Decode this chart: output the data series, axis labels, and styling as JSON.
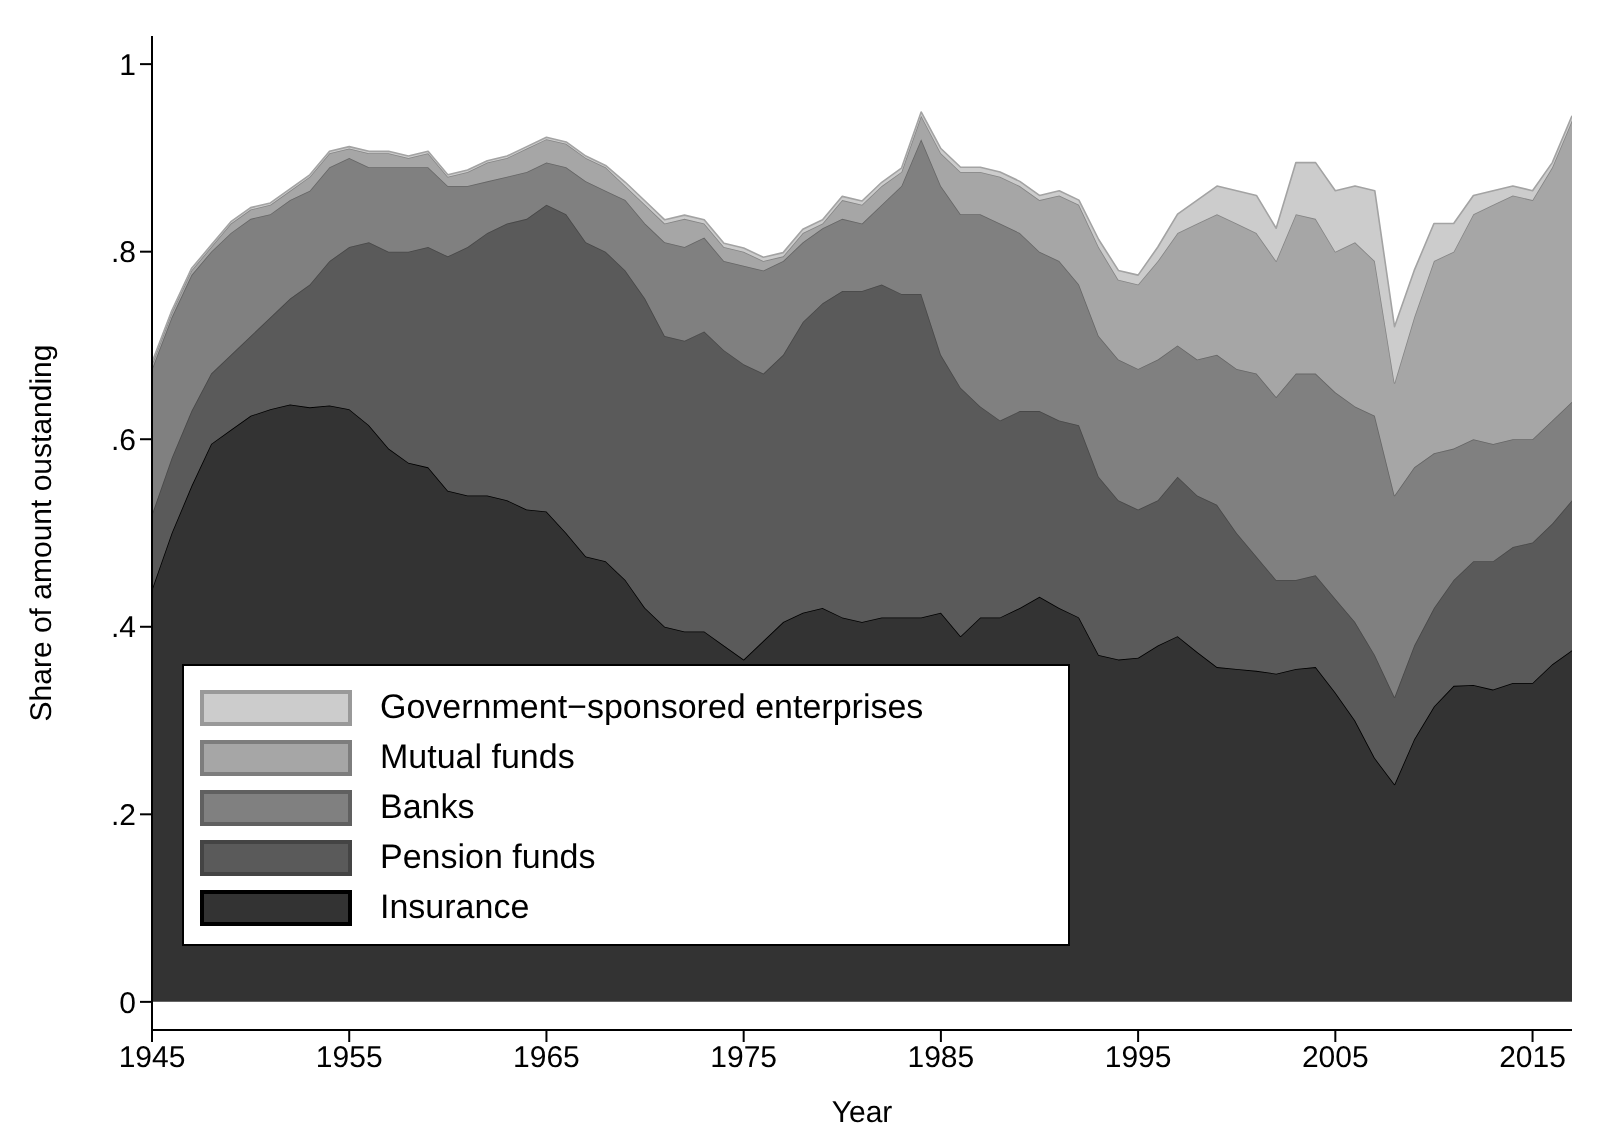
{
  "chart_data": {
    "type": "area",
    "stacked": true,
    "xlabel": "Year",
    "ylabel": "Share of amount oustanding",
    "x": [
      1945,
      1946,
      1947,
      1948,
      1949,
      1950,
      1951,
      1952,
      1953,
      1954,
      1955,
      1956,
      1957,
      1958,
      1959,
      1960,
      1961,
      1962,
      1963,
      1964,
      1965,
      1966,
      1967,
      1968,
      1969,
      1970,
      1971,
      1972,
      1973,
      1974,
      1975,
      1976,
      1977,
      1978,
      1979,
      1980,
      1981,
      1982,
      1983,
      1984,
      1985,
      1986,
      1987,
      1988,
      1989,
      1990,
      1991,
      1992,
      1993,
      1994,
      1995,
      1996,
      1997,
      1998,
      1999,
      2000,
      2001,
      2002,
      2003,
      2004,
      2005,
      2006,
      2007,
      2008,
      2009,
      2010,
      2011,
      2012,
      2013,
      2014,
      2015,
      2016,
      2017
    ],
    "xlim": [
      1945,
      2017
    ],
    "xticks": [
      1945,
      1955,
      1965,
      1975,
      1985,
      1995,
      2005,
      2015
    ],
    "ylim": [
      -0.03,
      1.03
    ],
    "yticks": [
      {
        "value": 0,
        "label": "0"
      },
      {
        "value": 0.2,
        "label": ".2"
      },
      {
        "value": 0.4,
        "label": ".4"
      },
      {
        "value": 0.6,
        "label": ".6"
      },
      {
        "value": 0.8,
        "label": ".8"
      },
      {
        "value": 1,
        "label": "1"
      }
    ],
    "grid": false,
    "legend": "bottom left",
    "series": [
      {
        "name": "Insurance",
        "color": "#333333",
        "values": [
          0.44,
          0.5,
          0.55,
          0.595,
          0.61,
          0.625,
          0.632,
          0.637,
          0.634,
          0.636,
          0.632,
          0.615,
          0.59,
          0.575,
          0.57,
          0.545,
          0.54,
          0.54,
          0.535,
          0.525,
          0.523,
          0.5,
          0.475,
          0.47,
          0.45,
          0.42,
          0.4,
          0.395,
          0.395,
          0.38,
          0.365,
          0.385,
          0.405,
          0.415,
          0.42,
          0.41,
          0.405,
          0.41,
          0.41,
          0.41,
          0.415,
          0.39,
          0.41,
          0.41,
          0.42,
          0.432,
          0.42,
          0.41,
          0.37,
          0.365,
          0.367,
          0.38,
          0.39,
          0.373,
          0.357,
          0.355,
          0.353,
          0.35,
          0.355,
          0.357,
          0.33,
          0.3,
          0.26,
          0.232,
          0.28,
          0.315,
          0.337,
          0.338,
          0.333,
          0.34,
          0.34,
          0.36,
          0.375
        ]
      },
      {
        "name": "Pension funds",
        "color": "#5a5a5a",
        "values": [
          0.08,
          0.08,
          0.08,
          0.075,
          0.08,
          0.085,
          0.098,
          0.113,
          0.131,
          0.154,
          0.173,
          0.195,
          0.21,
          0.225,
          0.235,
          0.25,
          0.265,
          0.28,
          0.295,
          0.31,
          0.327,
          0.34,
          0.335,
          0.33,
          0.33,
          0.33,
          0.31,
          0.31,
          0.32,
          0.315,
          0.315,
          0.285,
          0.285,
          0.31,
          0.325,
          0.348,
          0.353,
          0.355,
          0.345,
          0.345,
          0.275,
          0.265,
          0.225,
          0.21,
          0.21,
          0.198,
          0.2,
          0.205,
          0.19,
          0.17,
          0.158,
          0.155,
          0.17,
          0.167,
          0.173,
          0.145,
          0.122,
          0.1,
          0.095,
          0.098,
          0.1,
          0.105,
          0.11,
          0.093,
          0.1,
          0.105,
          0.113,
          0.132,
          0.137,
          0.145,
          0.15,
          0.15,
          0.16
        ]
      },
      {
        "name": "Banks",
        "color": "#808080",
        "values": [
          0.155,
          0.15,
          0.145,
          0.13,
          0.13,
          0.125,
          0.11,
          0.105,
          0.1,
          0.1,
          0.095,
          0.08,
          0.09,
          0.09,
          0.085,
          0.075,
          0.065,
          0.055,
          0.05,
          0.05,
          0.045,
          0.05,
          0.065,
          0.065,
          0.075,
          0.08,
          0.1,
          0.1,
          0.1,
          0.095,
          0.105,
          0.11,
          0.1,
          0.085,
          0.08,
          0.077,
          0.072,
          0.085,
          0.115,
          0.165,
          0.18,
          0.185,
          0.205,
          0.21,
          0.19,
          0.17,
          0.17,
          0.15,
          0.15,
          0.15,
          0.15,
          0.15,
          0.14,
          0.145,
          0.16,
          0.175,
          0.195,
          0.195,
          0.22,
          0.215,
          0.22,
          0.23,
          0.255,
          0.215,
          0.19,
          0.165,
          0.14,
          0.13,
          0.125,
          0.115,
          0.11,
          0.11,
          0.105
        ]
      },
      {
        "name": "Mutual funds",
        "color": "#a6a6a6",
        "values": [
          0.005,
          0.005,
          0.005,
          0.005,
          0.01,
          0.01,
          0.01,
          0.01,
          0.015,
          0.015,
          0.01,
          0.015,
          0.015,
          0.01,
          0.015,
          0.01,
          0.015,
          0.02,
          0.02,
          0.025,
          0.025,
          0.025,
          0.025,
          0.025,
          0.015,
          0.02,
          0.02,
          0.03,
          0.015,
          0.015,
          0.015,
          0.01,
          0.005,
          0.01,
          0.005,
          0.02,
          0.02,
          0.02,
          0.015,
          0.025,
          0.035,
          0.045,
          0.045,
          0.05,
          0.05,
          0.055,
          0.07,
          0.085,
          0.095,
          0.085,
          0.09,
          0.105,
          0.12,
          0.145,
          0.15,
          0.155,
          0.15,
          0.145,
          0.17,
          0.165,
          0.15,
          0.175,
          0.165,
          0.12,
          0.16,
          0.205,
          0.21,
          0.24,
          0.255,
          0.26,
          0.255,
          0.27,
          0.3
        ]
      },
      {
        "name": "Government−sponsored enterprises",
        "color": "#cccccc",
        "values": [
          0.002,
          0.002,
          0.002,
          0.002,
          0.002,
          0.002,
          0.002,
          0.002,
          0.002,
          0.002,
          0.002,
          0.002,
          0.002,
          0.002,
          0.002,
          0.002,
          0.002,
          0.002,
          0.002,
          0.002,
          0.002,
          0.002,
          0.002,
          0.002,
          0.004,
          0.004,
          0.004,
          0.004,
          0.004,
          0.004,
          0.004,
          0.004,
          0.004,
          0.004,
          0.004,
          0.004,
          0.004,
          0.004,
          0.004,
          0.004,
          0.005,
          0.005,
          0.005,
          0.005,
          0.005,
          0.005,
          0.005,
          0.005,
          0.008,
          0.01,
          0.01,
          0.015,
          0.02,
          0.025,
          0.03,
          0.035,
          0.04,
          0.035,
          0.055,
          0.06,
          0.065,
          0.06,
          0.075,
          0.06,
          0.05,
          0.04,
          0.03,
          0.02,
          0.015,
          0.01,
          0.01,
          0.005,
          0.005
        ]
      }
    ]
  }
}
